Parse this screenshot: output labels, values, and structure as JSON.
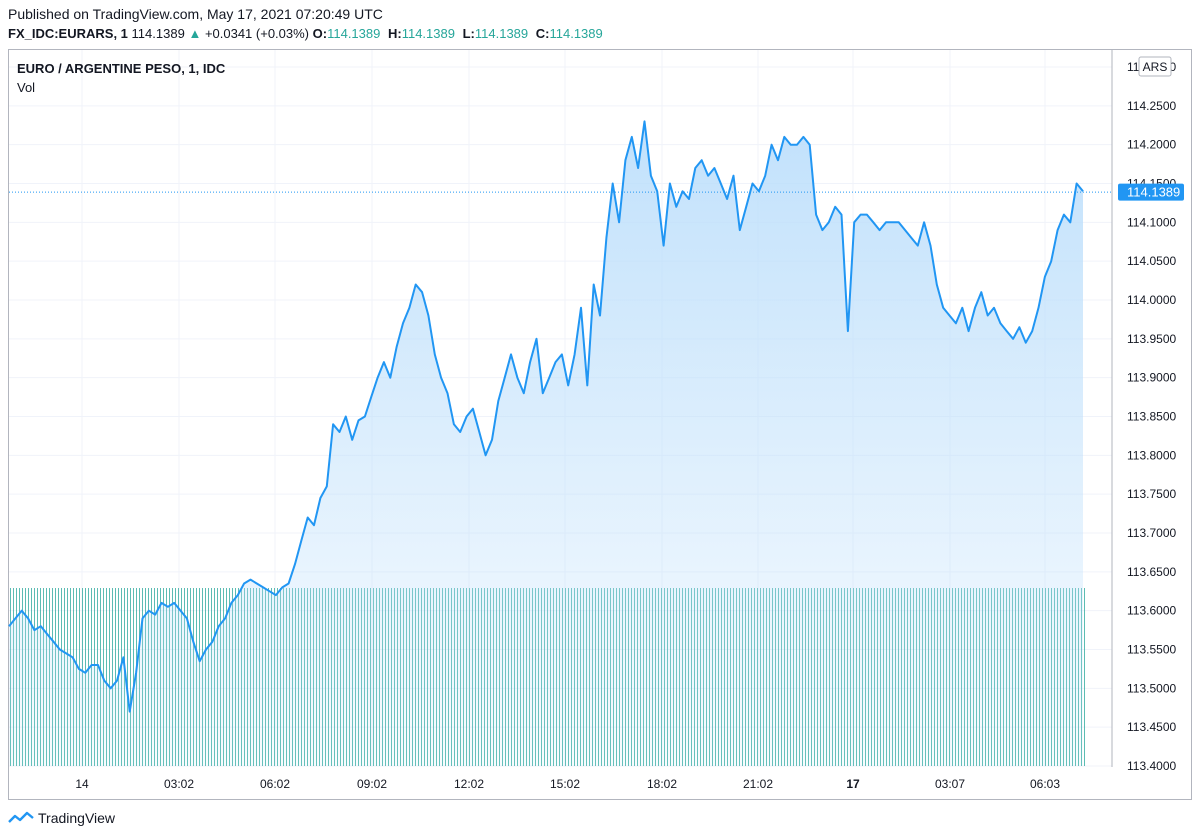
{
  "header": {
    "published": "Published on TradingView.com, May 17, 2021 07:20:49 UTC",
    "symbol": "FX_IDC:EURARS, 1",
    "last": "114.1389",
    "change": "+0.0341 (+0.03%)",
    "ohlc": [
      {
        "key": "O:",
        "value": "114.1389"
      },
      {
        "key": "H:",
        "value": "114.1389"
      },
      {
        "key": "L:",
        "value": "114.1389"
      },
      {
        "key": "C:",
        "value": "114.1389"
      }
    ]
  },
  "chart_title": "EURO / ARGENTINE PESO, 1, IDC",
  "volume_label": "Vol",
  "currency_badge": "ARS",
  "footer_brand": "TradingView",
  "colors": {
    "line": "#2196f3",
    "fill": "#bbdefb",
    "volume": "#26a69a",
    "price_label": "#2196f3"
  },
  "chart_data": {
    "type": "area",
    "title": "EURO / ARGENTINE PESO, 1, IDC",
    "ylim": [
      113.4,
      114.3
    ],
    "y_ticks": [
      "113.4000",
      "113.4500",
      "113.5000",
      "113.5500",
      "113.6000",
      "113.6500",
      "113.7000",
      "113.7500",
      "113.8000",
      "113.8500",
      "113.9000",
      "113.9500",
      "114.0000",
      "114.0500",
      "114.1000",
      "114.1500",
      "114.2000",
      "114.2500",
      "114.3000"
    ],
    "x_ticks": [
      "14",
      "03:02",
      "06:02",
      "09:02",
      "12:02",
      "15:02",
      "18:02",
      "21:02",
      "17",
      "03:07",
      "06:03"
    ],
    "last_price": 114.1389,
    "last_price_label": "114.1389",
    "series": [
      {
        "values": [
          113.58,
          113.59,
          113.6,
          113.59,
          113.575,
          113.58,
          113.57,
          113.56,
          113.55,
          113.545,
          113.54,
          113.525,
          113.52,
          113.53,
          113.53,
          113.51,
          113.5,
          113.51,
          113.54,
          113.47,
          113.52,
          113.59,
          113.6,
          113.595,
          113.61,
          113.605,
          113.61,
          113.6,
          113.59,
          113.56,
          113.535,
          113.55,
          113.56,
          113.58,
          113.59,
          113.61,
          113.62,
          113.635,
          113.64,
          113.635,
          113.63,
          113.625,
          113.62,
          113.63,
          113.635,
          113.66,
          113.69,
          113.72,
          113.71,
          113.745,
          113.76,
          113.84,
          113.83,
          113.85,
          113.82,
          113.845,
          113.85,
          113.875,
          113.9,
          113.92,
          113.9,
          113.94,
          113.97,
          113.99,
          114.02,
          114.01,
          113.98,
          113.93,
          113.9,
          113.88,
          113.84,
          113.83,
          113.85,
          113.86,
          113.83,
          113.8,
          113.82,
          113.87,
          113.9,
          113.93,
          113.9,
          113.88,
          113.92,
          113.95,
          113.88,
          113.9,
          113.92,
          113.93,
          113.89,
          113.93,
          113.99,
          113.89,
          114.02,
          113.98,
          114.08,
          114.15,
          114.1,
          114.18,
          114.21,
          114.17,
          114.23,
          114.16,
          114.14,
          114.07,
          114.15,
          114.12,
          114.14,
          114.13,
          114.17,
          114.18,
          114.16,
          114.17,
          114.15,
          114.13,
          114.16,
          114.09,
          114.12,
          114.15,
          114.14,
          114.16,
          114.2,
          114.18,
          114.21,
          114.2,
          114.2,
          114.21,
          114.2,
          114.11,
          114.09,
          114.1,
          114.12,
          114.11,
          113.96,
          114.1,
          114.11,
          114.11,
          114.1,
          114.09,
          114.1,
          114.1,
          114.1,
          114.09,
          114.08,
          114.07,
          114.1,
          114.07,
          114.02,
          113.99,
          113.98,
          113.97,
          113.99,
          113.96,
          113.99,
          114.01,
          113.98,
          113.99,
          113.97,
          113.96,
          113.95,
          113.965,
          113.945,
          113.96,
          113.99,
          114.03,
          114.05,
          114.09,
          114.11,
          114.1,
          114.15,
          114.14
        ]
      }
    ]
  }
}
